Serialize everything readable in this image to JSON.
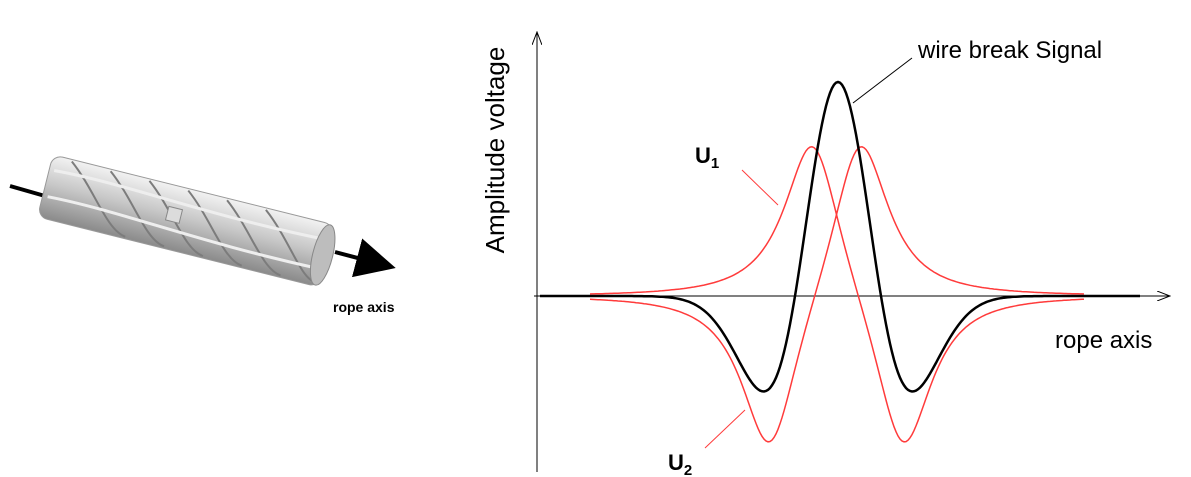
{
  "rope_label": "rope axis",
  "y_axis_label": "Amplitude voltage",
  "x_axis_label": "rope axis",
  "annotations": {
    "signal": "wire break Signal",
    "u1": {
      "main": "U",
      "sub": "1"
    },
    "u2": {
      "main": "U",
      "sub": "2"
    }
  }
}
